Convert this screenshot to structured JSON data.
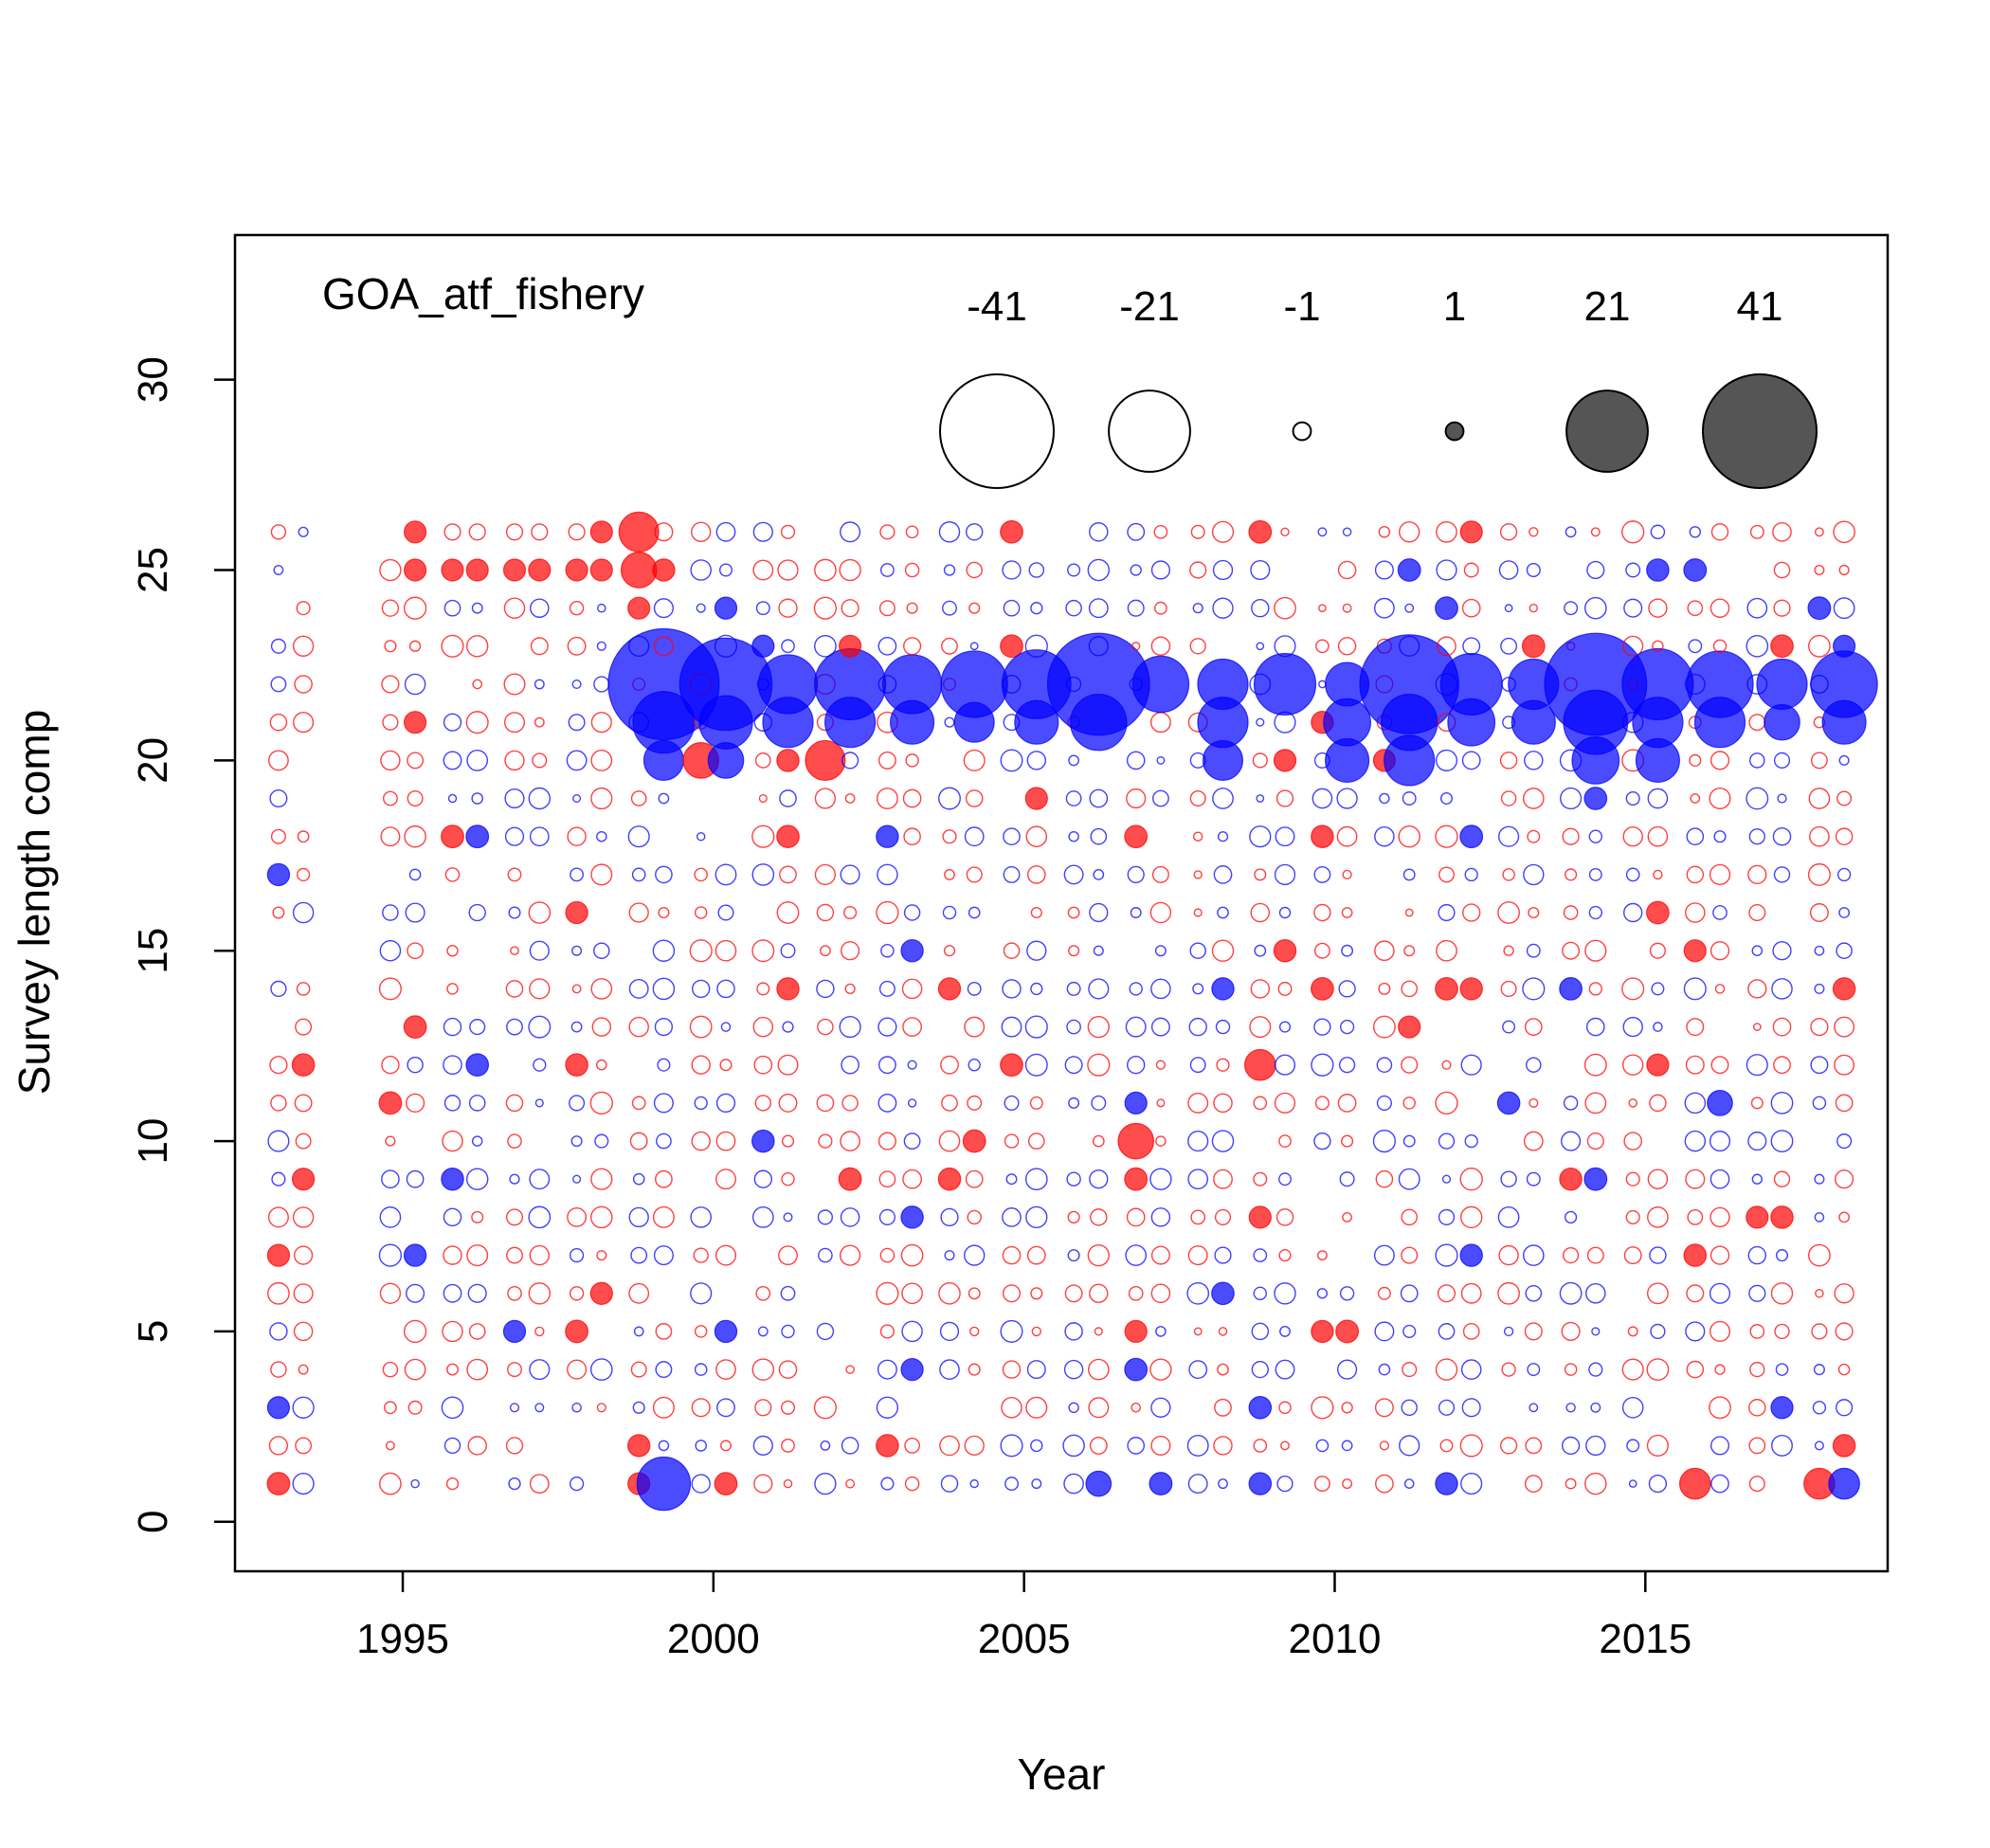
{
  "chart_data": {
    "type": "scatter",
    "subtype": "bubble",
    "title": "GOA_atf_fishery",
    "xlabel": "Year",
    "ylabel": "Survey length comp",
    "xlim": [
      1992.3,
      2018.9
    ],
    "ylim": [
      -1.3,
      33.8
    ],
    "x_ticks": [
      1995,
      2000,
      2005,
      2010,
      2015
    ],
    "y_ticks": [
      0,
      5,
      10,
      15,
      20,
      25,
      30
    ],
    "grid": false,
    "colors": {
      "positive": "#0000ff",
      "negative": "#ff0000",
      "legend_fill": "#555555"
    },
    "legend": {
      "placement": "top-right",
      "labels": [
        "-41",
        "-21",
        "-1",
        "1",
        "21",
        "41"
      ],
      "values": [
        -41,
        -21,
        -1,
        1,
        21,
        41
      ]
    },
    "bins": [
      1,
      2,
      3,
      4,
      5,
      6,
      7,
      8,
      9,
      10,
      11,
      12,
      13,
      14,
      15,
      16,
      17,
      18,
      19,
      20,
      21,
      22,
      23,
      24,
      25,
      26
    ],
    "years": [
      1993.0,
      1993.4,
      1994.8,
      1995.2,
      1995.8,
      1996.2,
      1996.8,
      1997.2,
      1997.8,
      1998.2,
      1998.8,
      1999.2,
      1999.8,
      2000.2,
      2000.8,
      2001.2,
      2001.8,
      2002.2,
      2002.8,
      2003.2,
      2003.8,
      2004.2,
      2004.8,
      2005.2,
      2005.8,
      2006.2,
      2006.8,
      2007.2,
      2007.8,
      2008.2,
      2008.8,
      2009.2,
      2009.8,
      2010.2,
      2010.8,
      2011.2,
      2011.8,
      2012.2,
      2012.8,
      2013.2,
      2013.8,
      2014.2,
      2014.8,
      2015.2,
      2015.8,
      2016.2,
      2016.8,
      2017.2,
      2017.8,
      2018.2
    ],
    "highlights": [
      {
        "year": 1999.2,
        "bin": 22,
        "value": 39
      },
      {
        "year": 1999.2,
        "bin": 21,
        "value": 12
      },
      {
        "year": 1999.2,
        "bin": 20,
        "value": 5
      },
      {
        "year": 1999.2,
        "bin": 1,
        "value": 9
      },
      {
        "year": 1998.8,
        "bin": 26,
        "value": -5
      },
      {
        "year": 1998.8,
        "bin": 25,
        "value": -4
      },
      {
        "year": 2000.2,
        "bin": 22,
        "value": 27
      },
      {
        "year": 2000.2,
        "bin": 21,
        "value": 9
      },
      {
        "year": 2000.2,
        "bin": 20,
        "value": 4
      },
      {
        "year": 1999.8,
        "bin": 20,
        "value": -4
      },
      {
        "year": 2001.2,
        "bin": 22,
        "value": 11
      },
      {
        "year": 2001.2,
        "bin": 21,
        "value": 8
      },
      {
        "year": 2001.8,
        "bin": 20,
        "value": -5
      },
      {
        "year": 2002.2,
        "bin": 22,
        "value": 16
      },
      {
        "year": 2002.2,
        "bin": 21,
        "value": 8
      },
      {
        "year": 2003.2,
        "bin": 22,
        "value": 11
      },
      {
        "year": 2003.2,
        "bin": 21,
        "value": 6
      },
      {
        "year": 2004.2,
        "bin": 22,
        "value": 14
      },
      {
        "year": 2004.2,
        "bin": 21,
        "value": 5
      },
      {
        "year": 2005.2,
        "bin": 22,
        "value": 15
      },
      {
        "year": 2005.2,
        "bin": 21,
        "value": 6
      },
      {
        "year": 2006.2,
        "bin": 22,
        "value": 33
      },
      {
        "year": 2006.2,
        "bin": 21,
        "value": 10
      },
      {
        "year": 2006.2,
        "bin": 1,
        "value": 2
      },
      {
        "year": 2007.2,
        "bin": 22,
        "value": 10
      },
      {
        "year": 2006.8,
        "bin": 10,
        "value": -4
      },
      {
        "year": 2008.2,
        "bin": 22,
        "value": 8
      },
      {
        "year": 2008.2,
        "bin": 21,
        "value": 8
      },
      {
        "year": 2008.2,
        "bin": 20,
        "value": 5
      },
      {
        "year": 2009.2,
        "bin": 22,
        "value": 12
      },
      {
        "year": 2008.8,
        "bin": 12,
        "value": -3
      },
      {
        "year": 2010.2,
        "bin": 22,
        "value": 6
      },
      {
        "year": 2010.2,
        "bin": 21,
        "value": 7
      },
      {
        "year": 2010.2,
        "bin": 20,
        "value": 6
      },
      {
        "year": 2011.2,
        "bin": 22,
        "value": 31
      },
      {
        "year": 2011.2,
        "bin": 21,
        "value": 10
      },
      {
        "year": 2011.2,
        "bin": 20,
        "value": 8
      },
      {
        "year": 2012.2,
        "bin": 22,
        "value": 12
      },
      {
        "year": 2012.2,
        "bin": 21,
        "value": 7
      },
      {
        "year": 2013.2,
        "bin": 22,
        "value": 8
      },
      {
        "year": 2013.2,
        "bin": 21,
        "value": 6
      },
      {
        "year": 2014.2,
        "bin": 22,
        "value": 33
      },
      {
        "year": 2014.2,
        "bin": 21,
        "value": 13
      },
      {
        "year": 2014.2,
        "bin": 20,
        "value": 7
      },
      {
        "year": 2015.2,
        "bin": 22,
        "value": 16
      },
      {
        "year": 2015.2,
        "bin": 21,
        "value": 8
      },
      {
        "year": 2015.2,
        "bin": 20,
        "value": 6
      },
      {
        "year": 2016.2,
        "bin": 22,
        "value": 14
      },
      {
        "year": 2016.2,
        "bin": 21,
        "value": 8
      },
      {
        "year": 2016.2,
        "bin": 11,
        "value": 2
      },
      {
        "year": 2015.8,
        "bin": 1,
        "value": -3
      },
      {
        "year": 2017.2,
        "bin": 22,
        "value": 8
      },
      {
        "year": 2017.2,
        "bin": 21,
        "value": 4
      },
      {
        "year": 2018.2,
        "bin": 22,
        "value": 14
      },
      {
        "year": 2018.2,
        "bin": 21,
        "value": 6
      },
      {
        "year": 2018.2,
        "bin": 1,
        "value": 3
      },
      {
        "year": 2017.8,
        "bin": 1,
        "value": -3
      }
    ]
  }
}
